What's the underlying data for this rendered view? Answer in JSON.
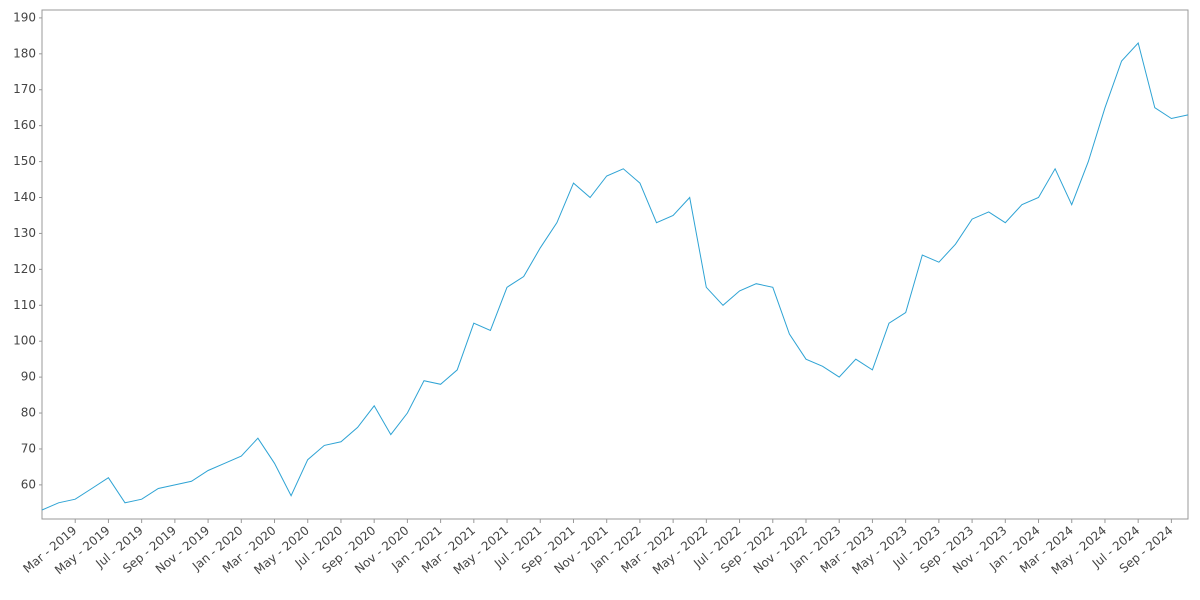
{
  "chart_data": {
    "type": "line",
    "x": [
      "2019-01",
      "2019-02",
      "2019-03",
      "2019-04",
      "2019-05",
      "2019-06",
      "2019-07",
      "2019-08",
      "2019-09",
      "2019-10",
      "2019-11",
      "2019-12",
      "2020-01",
      "2020-02",
      "2020-03",
      "2020-04",
      "2020-05",
      "2020-06",
      "2020-07",
      "2020-08",
      "2020-09",
      "2020-10",
      "2020-11",
      "2020-12",
      "2021-01",
      "2021-02",
      "2021-03",
      "2021-04",
      "2021-05",
      "2021-06",
      "2021-07",
      "2021-08",
      "2021-09",
      "2021-10",
      "2021-11",
      "2021-12",
      "2022-01",
      "2022-02",
      "2022-03",
      "2022-04",
      "2022-05",
      "2022-06",
      "2022-07",
      "2022-08",
      "2022-09",
      "2022-10",
      "2022-11",
      "2022-12",
      "2023-01",
      "2023-02",
      "2023-03",
      "2023-04",
      "2023-05",
      "2023-06",
      "2023-07",
      "2023-08",
      "2023-09",
      "2023-10",
      "2023-11",
      "2023-12",
      "2024-01",
      "2024-02",
      "2024-03",
      "2024-04",
      "2024-05",
      "2024-06",
      "2024-07",
      "2024-08",
      "2024-09",
      "2024-10"
    ],
    "series": [
      {
        "color": "#2ea3d4",
        "values": [
          53,
          55,
          56,
          59,
          62,
          55,
          56,
          59,
          60,
          61,
          64,
          66,
          68,
          73,
          66,
          57,
          67,
          71,
          72,
          76,
          82,
          74,
          80,
          89,
          88,
          92,
          105,
          103,
          115,
          118,
          126,
          133,
          144,
          140,
          146,
          148,
          144,
          133,
          135,
          140,
          115,
          110,
          114,
          116,
          115,
          102,
          95,
          93,
          90,
          95,
          92,
          105,
          108,
          124,
          122,
          127,
          134,
          136,
          133,
          138,
          140,
          148,
          138,
          150,
          165,
          178,
          183,
          165,
          162,
          163
        ]
      }
    ],
    "xlim": [
      "2019-01",
      "2024-10"
    ],
    "xticks": [
      {
        "value": "2019-03",
        "label": "Mar - 2019"
      },
      {
        "value": "2019-05",
        "label": "May - 2019"
      },
      {
        "value": "2019-07",
        "label": "Jul - 2019"
      },
      {
        "value": "2019-09",
        "label": "Sep - 2019"
      },
      {
        "value": "2019-11",
        "label": "Nov - 2019"
      },
      {
        "value": "2020-01",
        "label": "Jan - 2020"
      },
      {
        "value": "2020-03",
        "label": "Mar - 2020"
      },
      {
        "value": "2020-05",
        "label": "May - 2020"
      },
      {
        "value": "2020-07",
        "label": "Jul - 2020"
      },
      {
        "value": "2020-09",
        "label": "Sep - 2020"
      },
      {
        "value": "2020-11",
        "label": "Nov - 2020"
      },
      {
        "value": "2021-01",
        "label": "Jan - 2021"
      },
      {
        "value": "2021-03",
        "label": "Mar - 2021"
      },
      {
        "value": "2021-05",
        "label": "May - 2021"
      },
      {
        "value": "2021-07",
        "label": "Jul - 2021"
      },
      {
        "value": "2021-09",
        "label": "Sep - 2021"
      },
      {
        "value": "2021-11",
        "label": "Nov - 2021"
      },
      {
        "value": "2022-01",
        "label": "Jan - 2022"
      },
      {
        "value": "2022-03",
        "label": "Mar - 2022"
      },
      {
        "value": "2022-05",
        "label": "May - 2022"
      },
      {
        "value": "2022-07",
        "label": "Jul - 2022"
      },
      {
        "value": "2022-09",
        "label": "Sep - 2022"
      },
      {
        "value": "2022-11",
        "label": "Nov - 2022"
      },
      {
        "value": "2023-01",
        "label": "Jan - 2023"
      },
      {
        "value": "2023-03",
        "label": "Mar - 2023"
      },
      {
        "value": "2023-05",
        "label": "May - 2023"
      },
      {
        "value": "2023-07",
        "label": "Jul - 2023"
      },
      {
        "value": "2023-09",
        "label": "Sep - 2023"
      },
      {
        "value": "2023-11",
        "label": "Nov - 2023"
      },
      {
        "value": "2024-01",
        "label": "Jan - 2024"
      },
      {
        "value": "2024-03",
        "label": "Mar - 2024"
      },
      {
        "value": "2024-05",
        "label": "May - 2024"
      },
      {
        "value": "2024-07",
        "label": "Jul - 2024"
      },
      {
        "value": "2024-09",
        "label": "Sep - 2024"
      }
    ],
    "ylim": [
      50.5,
      192.2
    ],
    "yticks": [
      60,
      70,
      80,
      90,
      100,
      110,
      120,
      130,
      140,
      150,
      160,
      170,
      180,
      190
    ],
    "grid": false
  }
}
